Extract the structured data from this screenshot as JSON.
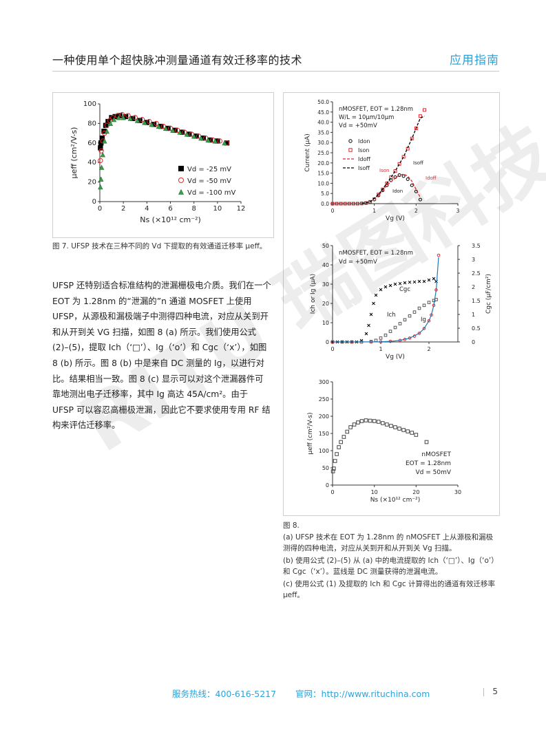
{
  "header": {
    "title": "一种使用单个超快脉冲测量通道有效迁移率的技术",
    "tag": "应用指南"
  },
  "fig7": {
    "caption": "图 7. UFSP 技术在三种不同的 Vd 下提取的有效通道迁移率 μeff。",
    "chart_data": {
      "type": "scatter",
      "xlabel": "Ns (×10¹² cm⁻²)",
      "ylabel": "μeff (cm²/V-s)",
      "xlim": [
        0,
        12
      ],
      "ylim": [
        0,
        100
      ],
      "xticks": [
        "0",
        "2",
        "4",
        "6",
        "8",
        "10",
        "12"
      ],
      "yticks": [
        "0",
        "20",
        "40",
        "60",
        "80",
        "100"
      ],
      "legend": [
        "Vd = -25 mV",
        "Vd = -50 mV",
        "Vd = -100 mV"
      ],
      "series": [
        {
          "name": "Vd = -25 mV",
          "marker": "square",
          "color": "#000000",
          "x": [
            0.05,
            0.1,
            0.2,
            0.35,
            0.5,
            0.7,
            1.0,
            1.3,
            1.7,
            2.2,
            2.8,
            3.4,
            4.0,
            4.6,
            5.2,
            5.8,
            6.4,
            7.0,
            7.6,
            8.2,
            8.8,
            9.4,
            10.0,
            10.8
          ],
          "y": [
            55,
            60,
            65,
            72,
            78,
            82,
            86,
            87,
            88,
            87,
            85,
            83,
            81,
            79,
            77,
            75,
            73,
            71,
            69,
            67,
            65,
            63,
            62,
            60
          ]
        },
        {
          "name": "Vd = -50 mV",
          "marker": "circle",
          "color": "#e0262b",
          "x": [
            0.05,
            0.12,
            0.25,
            0.4,
            0.6,
            0.85,
            1.1,
            1.5,
            1.9,
            2.4,
            3.0,
            3.6,
            4.2,
            4.8,
            5.4,
            6.0,
            6.6,
            7.2,
            7.8,
            8.4,
            9.0,
            9.6,
            10.2,
            10.8
          ],
          "y": [
            42,
            52,
            62,
            70,
            78,
            83,
            86,
            88,
            89,
            88,
            86,
            84,
            82,
            80,
            77,
            75,
            73,
            71,
            69,
            67,
            65,
            63,
            62,
            60
          ]
        },
        {
          "name": "Vd = -100 mV",
          "marker": "triangle",
          "color": "#3aa04a",
          "x": [
            0.05,
            0.1,
            0.15,
            0.25,
            0.4,
            0.6,
            0.9,
            1.2,
            1.6,
            2.0,
            2.6,
            3.2,
            3.8,
            4.4,
            5.0,
            5.6,
            6.2,
            6.8,
            7.4,
            8.0,
            8.6,
            9.2,
            9.8,
            10.6
          ],
          "y": [
            15,
            23,
            35,
            48,
            62,
            72,
            80,
            84,
            86,
            86,
            85,
            83,
            81,
            79,
            77,
            75,
            73,
            71,
            69,
            67,
            65,
            63,
            62,
            60
          ]
        }
      ]
    }
  },
  "body": {
    "p1": "UFSP 还特别适合标准结构的泄漏栅极电介质。我们在一个 EOT 为 1.28nm 的“泄漏的”n 通道 MOSFET 上使用 UFSP，从源极和漏极端子中测得四种电流，对应从关到开和从开到关 VG 扫描，如图 8 (a) 所示。我们使用公式 (2)–(5)，提取 Ich（‘□’）、Ig（‘o’）和 Cgc（‘x’），如图 8 (b) 所示。图 8 (b) 中是来自 DC 测量的 Ig，以进行对比。结果相当一致。图 8 (c) 显示可以对这个泄漏器件可靠地测出电子迁移率，其中 Ig 高达 45A/cm²。由于 UFSP 可以容忍高栅极泄漏，因此它不要求使用专用 RF 结构来评估迁移率。"
  },
  "fig8": {
    "caption_title": "图 8.",
    "caption_a": "(a) UFSP 技术在 EOT 为 1.28nm 的 nMOSFET 上从源极和漏极测得的四种电流，对应从关到开和从开到关 Vg 扫描。",
    "caption_b": "(b) 使用公式 (2)–(5) 从 (a) 中的电流提取的 Ich（‘□’）、Ig（‘o’）和 Cgc（‘x’）。蓝线是 DC 测量获得的泄漏电流。",
    "caption_c": "(c) 使用公式 (1) 及提取的 Ich 和 Cgc 计算得出的通道有效迁移率 μeff。",
    "chart_data": [
      {
        "type": "scatter",
        "title": "nMOSFET, EOT = 1.28nm",
        "notes": [
          "W/L = 10μm/10μm",
          "Vd = +50mV"
        ],
        "xlabel": "Vg (V)",
        "ylabel": "Current (μA)",
        "xlim": [
          0,
          3
        ],
        "ylim": [
          0,
          50
        ],
        "xticks": [
          "0",
          "1",
          "2",
          "3"
        ],
        "yticks": [
          "0.0",
          "5.0",
          "10.0",
          "15.0",
          "20.0",
          "25.0",
          "30.0",
          "35.0",
          "40.0",
          "45.0",
          "50.0"
        ],
        "legend": [
          "Idon",
          "Ison",
          "Idoff",
          "Isoff"
        ],
        "annotations": [
          "Ison",
          "Isoff",
          "Idon",
          "Idoff"
        ],
        "series": [
          {
            "name": "Idon",
            "marker": "circle",
            "color": "#000000",
            "x": [
              0,
              0.1,
              0.2,
              0.3,
              0.4,
              0.5,
              0.6,
              0.7,
              0.8,
              0.9,
              1.0,
              1.1,
              1.2,
              1.3,
              1.4,
              1.5,
              1.6,
              1.7,
              1.8,
              1.9,
              2.0,
              2.1
            ],
            "y": [
              0,
              0,
              0,
              0,
              0,
              0,
              0,
              0.1,
              0.3,
              0.8,
              2,
              4,
              6.5,
              9,
              11.5,
              13,
              14,
              13.5,
              12,
              9,
              6,
              2
            ]
          },
          {
            "name": "Ison",
            "marker": "square",
            "color": "#e0262b",
            "x": [
              0,
              0.1,
              0.2,
              0.3,
              0.4,
              0.5,
              0.6,
              0.7,
              0.8,
              0.9,
              1.0,
              1.1,
              1.2,
              1.3,
              1.4,
              1.5,
              1.6,
              1.7,
              1.8,
              1.9,
              2.0,
              2.1,
              2.2
            ],
            "y": [
              0,
              0,
              0,
              0,
              0,
              0,
              0,
              0.1,
              0.3,
              0.9,
              2.2,
              4.5,
              7,
              10,
              13,
              16,
              19.5,
              23,
              27,
              32,
              37,
              43,
              46
            ]
          },
          {
            "name": "Idoff",
            "marker": "line-dash",
            "color": "#e0262b",
            "x": [
              0.7,
              0.9,
              1.1,
              1.3,
              1.5,
              1.6,
              1.7,
              1.8,
              1.9,
              2.0,
              2.1
            ],
            "y": [
              0.1,
              0.8,
              4,
              9,
              12.5,
              14,
              14.5,
              13.5,
              11,
              7,
              3
            ]
          },
          {
            "name": "Isoff",
            "marker": "line-dash",
            "color": "#000000",
            "x": [
              0.7,
              0.9,
              1.1,
              1.3,
              1.5,
              1.7,
              1.9,
              2.0,
              2.1,
              2.2
            ],
            "y": [
              0.1,
              0.9,
              4.5,
              10,
              16,
              23,
              32,
              37,
              42,
              43
            ]
          }
        ]
      },
      {
        "type": "scatter",
        "title": "nMOSFET, EOT = 1.28nm",
        "notes": [
          "Vd = +50mV"
        ],
        "xlabel": "Vg (V)",
        "ylabel": "Ich or Ig (μA)",
        "y2label": "Cgc (μF/cm²)",
        "xlim": [
          0,
          2.6
        ],
        "ylim": [
          0,
          50
        ],
        "y2lim": [
          0,
          3.5
        ],
        "xticks": [
          "0",
          "1",
          "2"
        ],
        "yticks": [
          "0",
          "10",
          "20",
          "30",
          "40",
          "50"
        ],
        "y2ticks": [
          "0",
          "0.5",
          "1",
          "1.5",
          "2",
          "2.5",
          "3",
          "3.5"
        ],
        "annotations": [
          "Cgc",
          "Ich",
          "Ig"
        ],
        "series": [
          {
            "name": "Cgc",
            "marker": "cross",
            "color": "#000000",
            "axis": "y2",
            "x": [
              0,
              0.1,
              0.2,
              0.3,
              0.4,
              0.5,
              0.6,
              0.7,
              0.75,
              0.8,
              0.85,
              0.9,
              1.0,
              1.1,
              1.2,
              1.3,
              1.4,
              1.5,
              1.6,
              1.7,
              1.8,
              1.9,
              2.0,
              2.1,
              2.15
            ],
            "y": [
              0,
              0,
              0,
              0,
              0,
              0,
              0.05,
              0.3,
              0.6,
              1.0,
              1.4,
              1.7,
              1.9,
              2.0,
              2.05,
              2.1,
              2.12,
              2.15,
              2.17,
              2.18,
              2.2,
              2.2,
              2.25,
              2.3,
              2.2
            ]
          },
          {
            "name": "Ich",
            "marker": "square",
            "color": "#000000",
            "x": [
              0,
              0.2,
              0.4,
              0.6,
              0.8,
              0.9,
              1.0,
              1.1,
              1.2,
              1.3,
              1.4,
              1.5,
              1.6,
              1.7,
              1.8,
              1.9,
              2.0,
              2.1,
              2.15
            ],
            "y": [
              0,
              0,
              0,
              0,
              0.2,
              0.8,
              2,
              3.5,
              5.5,
              7.5,
              9.5,
              11.5,
              13.5,
              15.5,
              17.5,
              19,
              20.5,
              21.5,
              22
            ]
          },
          {
            "name": "Ig",
            "marker": "circle",
            "color": "#e0262b",
            "x": [
              0,
              0.4,
              0.8,
              1.0,
              1.2,
              1.4,
              1.5,
              1.6,
              1.7,
              1.8,
              1.9,
              2.0,
              2.05,
              2.1,
              2.15,
              2.2
            ],
            "y": [
              0,
              0,
              0,
              0.1,
              0.3,
              0.8,
              1.3,
              2,
              3,
              4.5,
              7,
              11,
              14,
              19,
              27,
              45
            ]
          },
          {
            "name": "Ig DC",
            "marker": "line",
            "color": "#1f77b4",
            "x": [
              0,
              0.5,
              1.0,
              1.2,
              1.4,
              1.6,
              1.8,
              1.9,
              2.0,
              2.05,
              2.1,
              2.15,
              2.2
            ],
            "y": [
              0,
              0,
              0.1,
              0.3,
              0.8,
              2,
              4.5,
              7,
              11,
              14,
              19,
              27,
              44
            ]
          }
        ]
      },
      {
        "type": "scatter",
        "notes": [
          "nMOSFET",
          "EOT = 1.28nm",
          "Vd = 50mV"
        ],
        "xlabel": "Ns (×10¹² cm⁻²)",
        "ylabel": "μeff (cm²/V-s)",
        "xlim": [
          0,
          30
        ],
        "ylim": [
          0,
          300
        ],
        "xticks": [
          "0",
          "10",
          "20",
          "30"
        ],
        "yticks": [
          "0",
          "50",
          "100",
          "150",
          "200",
          "250",
          "300"
        ],
        "series": [
          {
            "name": "μeff",
            "marker": "square",
            "color": "#444444",
            "x": [
              0.1,
              0.3,
              0.6,
              1.0,
              1.5,
              2.0,
              2.7,
              3.5,
              4.3,
              5.2,
              6.1,
              7.0,
              8.0,
              9.0,
              10.0,
              11.0,
              12.0,
              13.0,
              14.0,
              15.0,
              16.0,
              17.0,
              18.0,
              19.0,
              20.0,
              22.5
            ],
            "y": [
              40,
              48,
              70,
              90,
              110,
              125,
              140,
              155,
              168,
              176,
              182,
              186,
              188,
              187,
              186,
              184,
              180,
              176,
              172,
              168,
              164,
              160,
              156,
              152,
              146,
              125
            ]
          }
        ]
      }
    ]
  },
  "footer": {
    "hotline": "服务热线：400-616-5217",
    "site": "官网：http://www.rituchina.com",
    "page": "5"
  },
  "watermark": {
    "text": "RITU 瑞图科技"
  }
}
